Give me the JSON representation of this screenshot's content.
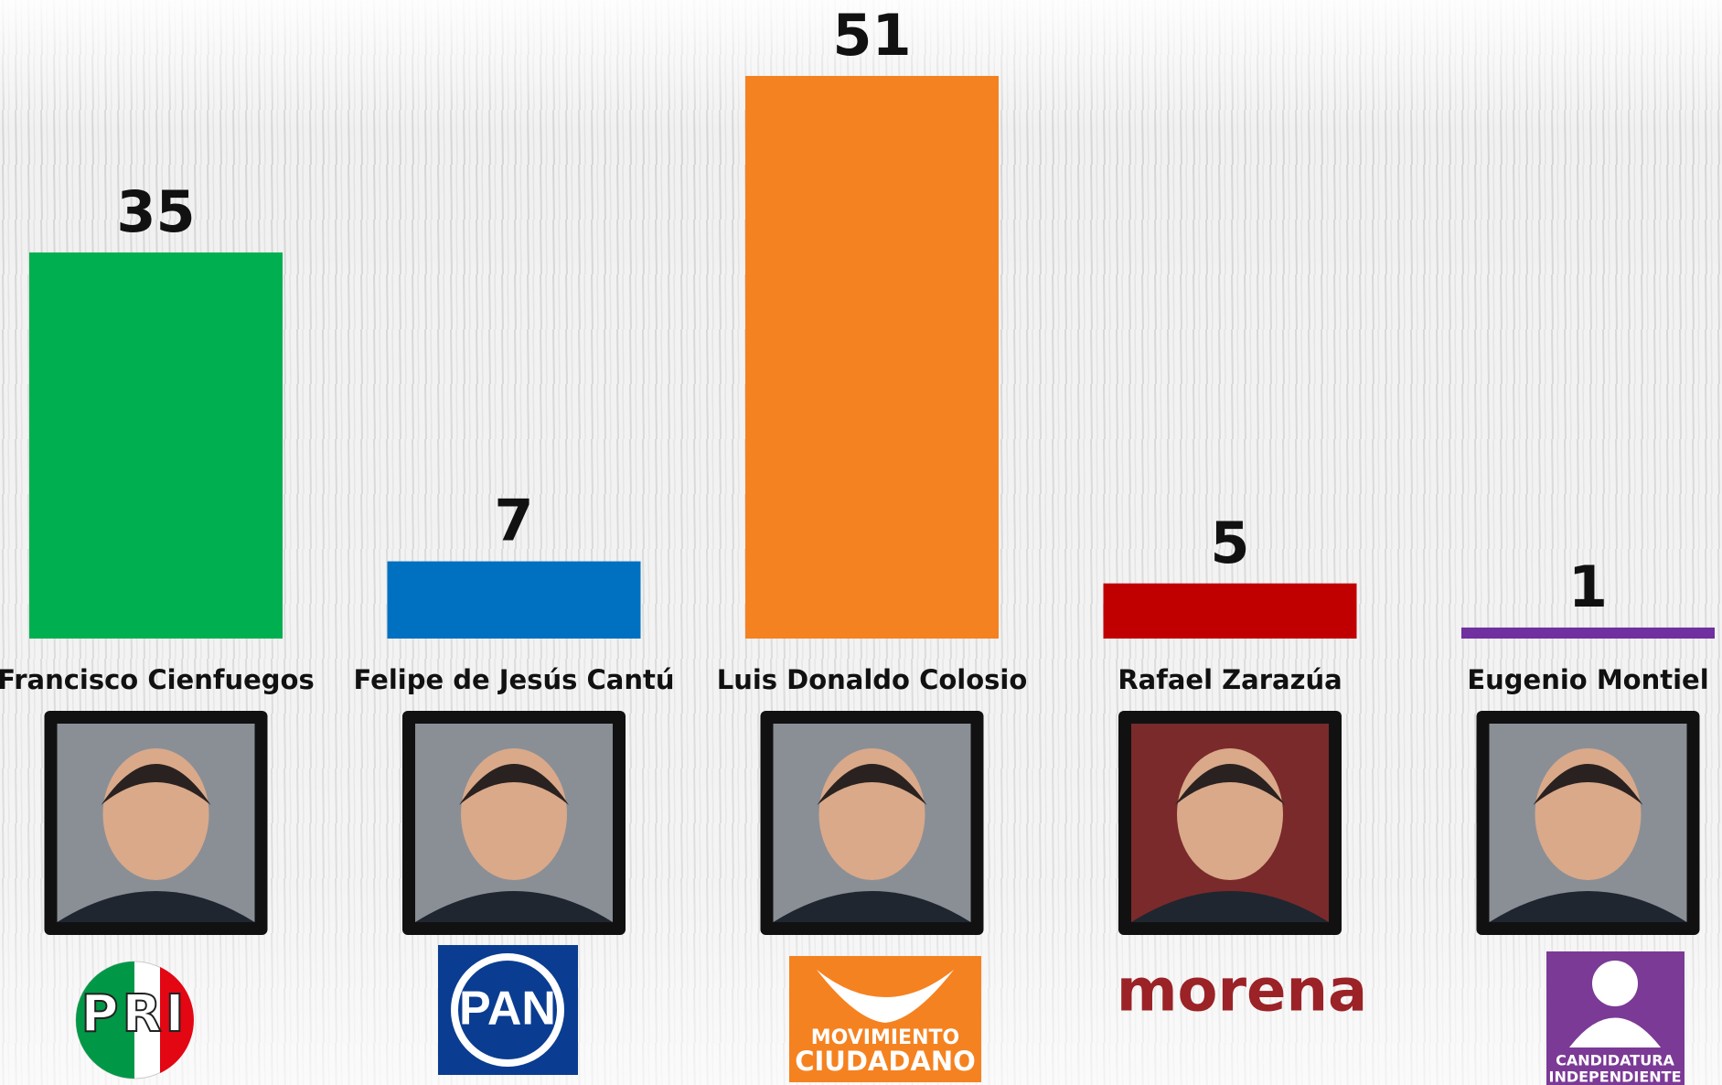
{
  "chart_data": {
    "type": "bar",
    "categories": [
      "Francisco Cienfuegos",
      "Felipe de Jesús Cantú",
      "Luis Donaldo Colosio",
      "Rafael Zarazúa",
      "Eugenio Montiel"
    ],
    "values": [
      35,
      7,
      51,
      5,
      1
    ],
    "colors": [
      "#00b050",
      "#0070c0",
      "#f58220",
      "#c00000",
      "#7030a0"
    ],
    "ylim": [
      0,
      51
    ]
  },
  "party_logos": [
    [
      "PRI"
    ],
    [
      "PAN"
    ],
    [
      "MOVIMIENTO",
      "CIUDADANO"
    ],
    [
      "morena"
    ],
    [
      "CANDIDATURA",
      "INDEPENDIENTE"
    ]
  ]
}
